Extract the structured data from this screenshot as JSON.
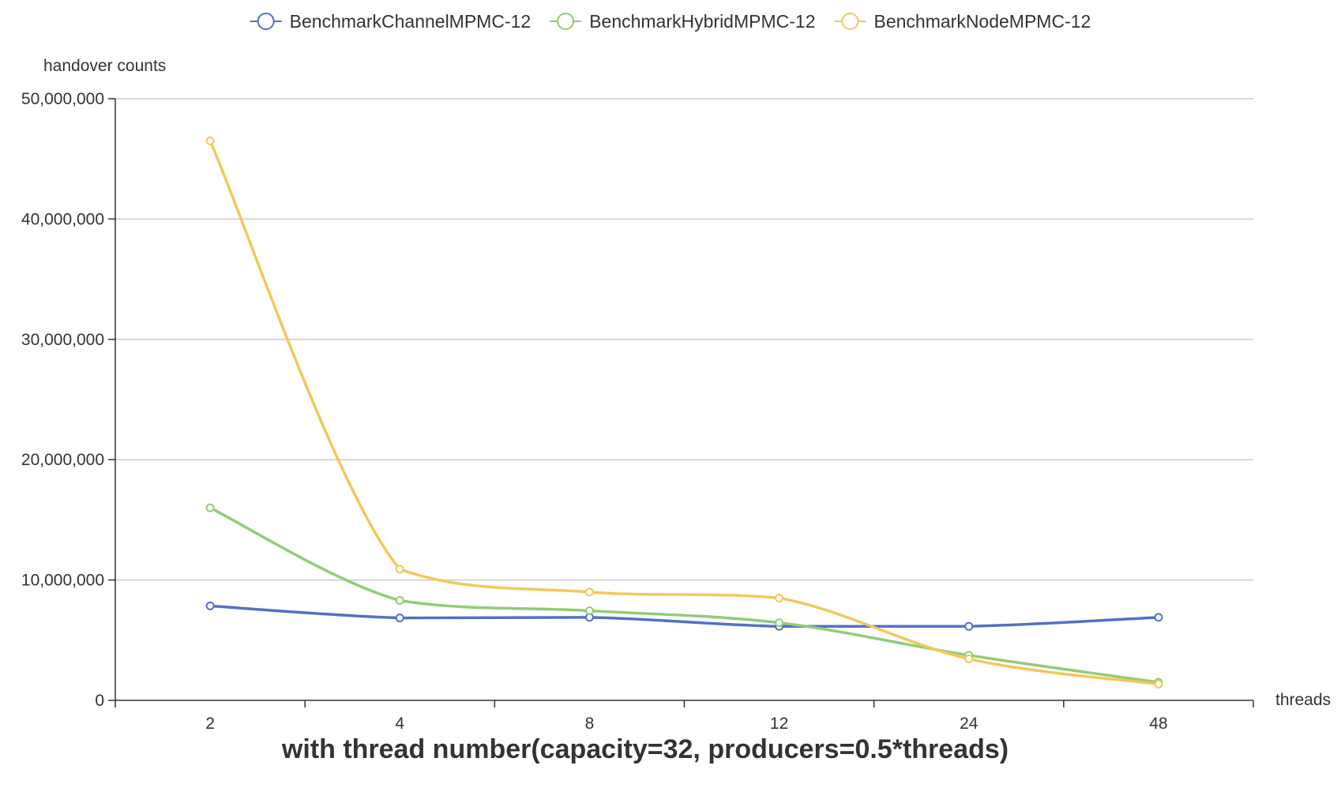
{
  "chart_data": {
    "type": "line",
    "title": "with thread number(capacity=32, producers=0.5*threads)",
    "xlabel": "threads",
    "ylabel": "handover counts",
    "categories": [
      "2",
      "4",
      "8",
      "12",
      "24",
      "48"
    ],
    "ylim": [
      0,
      50000000
    ],
    "yticks": [
      0,
      10000000,
      20000000,
      30000000,
      40000000,
      50000000
    ],
    "ytick_labels": [
      "0",
      "10,000,000",
      "20,000,000",
      "30,000,000",
      "40,000,000",
      "50,000,000"
    ],
    "grid": true,
    "smooth": true,
    "legend_position": "top-center",
    "series": [
      {
        "name": "BenchmarkChannelMPMC-12",
        "color": "#5470c6",
        "values": [
          7850000,
          6850000,
          6900000,
          6150000,
          6150000,
          6900000
        ]
      },
      {
        "name": "BenchmarkHybridMPMC-12",
        "color": "#91cc75",
        "values": [
          16000000,
          8300000,
          7450000,
          6450000,
          3750000,
          1500000
        ]
      },
      {
        "name": "BenchmarkNodeMPMC-12",
        "color": "#f2c85b",
        "values": [
          46500000,
          10900000,
          9000000,
          8500000,
          3450000,
          1350000
        ]
      }
    ]
  }
}
